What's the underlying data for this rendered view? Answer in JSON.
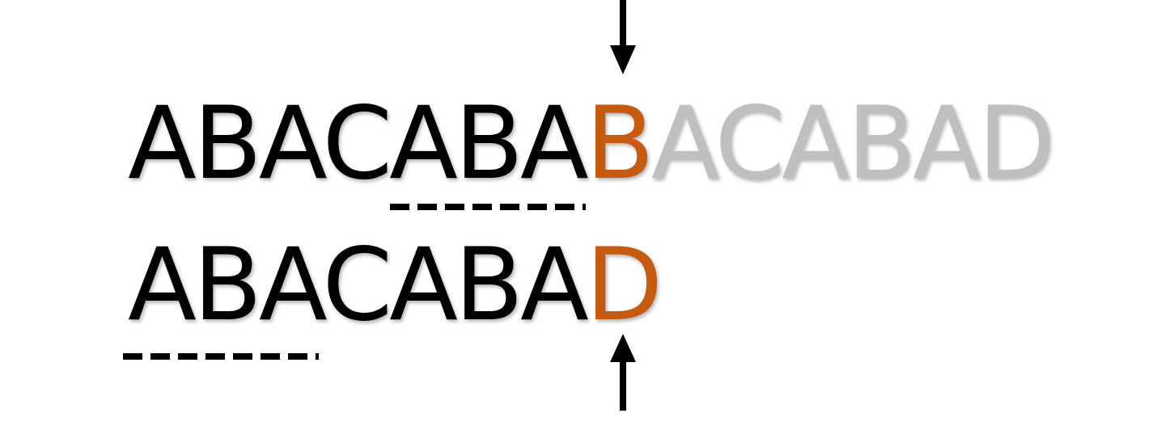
{
  "colors": {
    "text": "#000000",
    "highlight": "#c55a11",
    "faded": "#bfbfbf",
    "arrow": "#000000",
    "dash": "#000000"
  },
  "text_row": {
    "matched": "ABACABA",
    "mismatch": "B",
    "remaining": "ACABAD"
  },
  "pattern_row": {
    "matched": "ABACABA",
    "mismatch": "D"
  },
  "markers": {
    "top_arrow_icon": "down-arrow-icon",
    "bottom_arrow_icon": "up-arrow-icon",
    "text_underline": "dashed-underline",
    "pattern_underline": "dashed-underline"
  }
}
